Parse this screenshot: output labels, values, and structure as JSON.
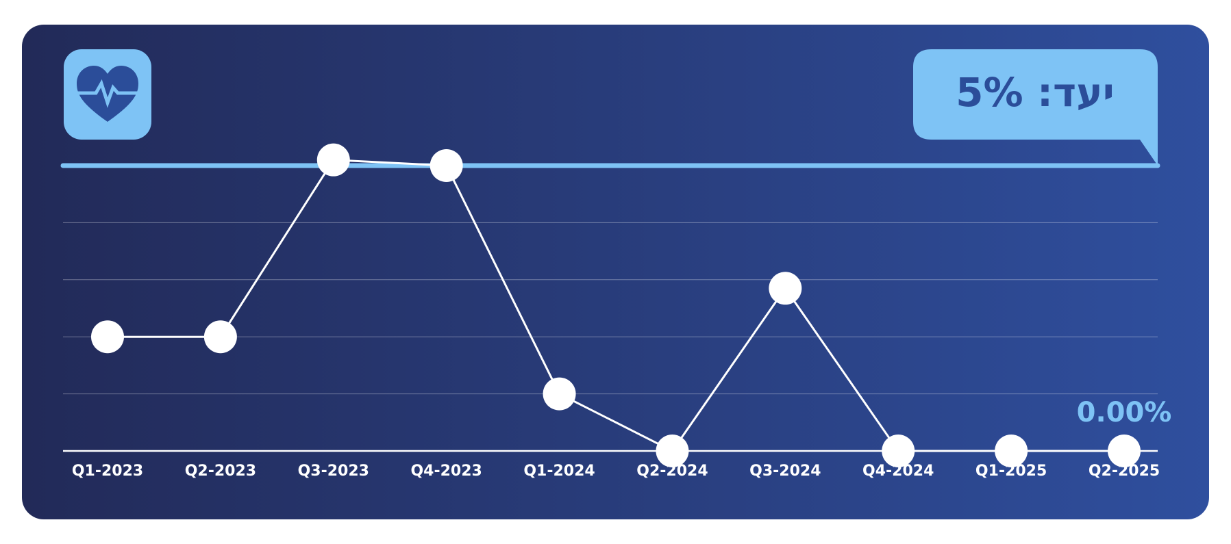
{
  "chart_data": {
    "type": "line",
    "categories": [
      "Q1-2023",
      "Q2-2023",
      "Q3-2023",
      "Q4-2023",
      "Q1-2024",
      "Q2-2024",
      "Q3-2024",
      "Q4-2024",
      "Q1-2025",
      "Q2-2025"
    ],
    "values": [
      2,
      2,
      5.1,
      5,
      1,
      0,
      2.85,
      0,
      0,
      0
    ],
    "value_labels": [
      null,
      null,
      null,
      null,
      null,
      null,
      null,
      null,
      null,
      "0.00%"
    ],
    "color": "#ffffff",
    "ylim": [
      0,
      5
    ],
    "yticks": [
      0,
      1,
      2,
      3,
      4
    ],
    "grid": true,
    "target": {
      "value": 5,
      "label": "יעד: 5%",
      "color": "#7ec3f5"
    }
  }
}
